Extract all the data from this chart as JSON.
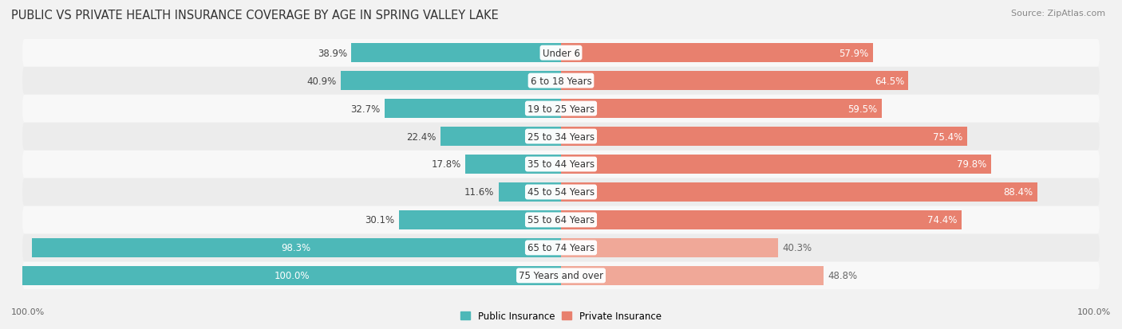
{
  "title": "PUBLIC VS PRIVATE HEALTH INSURANCE COVERAGE BY AGE IN SPRING VALLEY LAKE",
  "source": "Source: ZipAtlas.com",
  "categories": [
    "Under 6",
    "6 to 18 Years",
    "19 to 25 Years",
    "25 to 34 Years",
    "35 to 44 Years",
    "45 to 54 Years",
    "55 to 64 Years",
    "65 to 74 Years",
    "75 Years and over"
  ],
  "public_values": [
    38.9,
    40.9,
    32.7,
    22.4,
    17.8,
    11.6,
    30.1,
    98.3,
    100.0
  ],
  "private_values": [
    57.9,
    64.5,
    59.5,
    75.4,
    79.8,
    88.4,
    74.4,
    40.3,
    48.8
  ],
  "public_color": "#4db8b8",
  "private_color_strong": "#e8806e",
  "private_color_light": "#f0a898",
  "bg_color": "#f2f2f2",
  "row_colors": [
    "#f8f8f8",
    "#ececec"
  ],
  "max_value": 100.0,
  "label_fontsize": 8.5,
  "title_fontsize": 10.5,
  "source_fontsize": 8,
  "legend_fontsize": 8.5,
  "axis_label_fontsize": 8,
  "private_strong_threshold": 55.0
}
